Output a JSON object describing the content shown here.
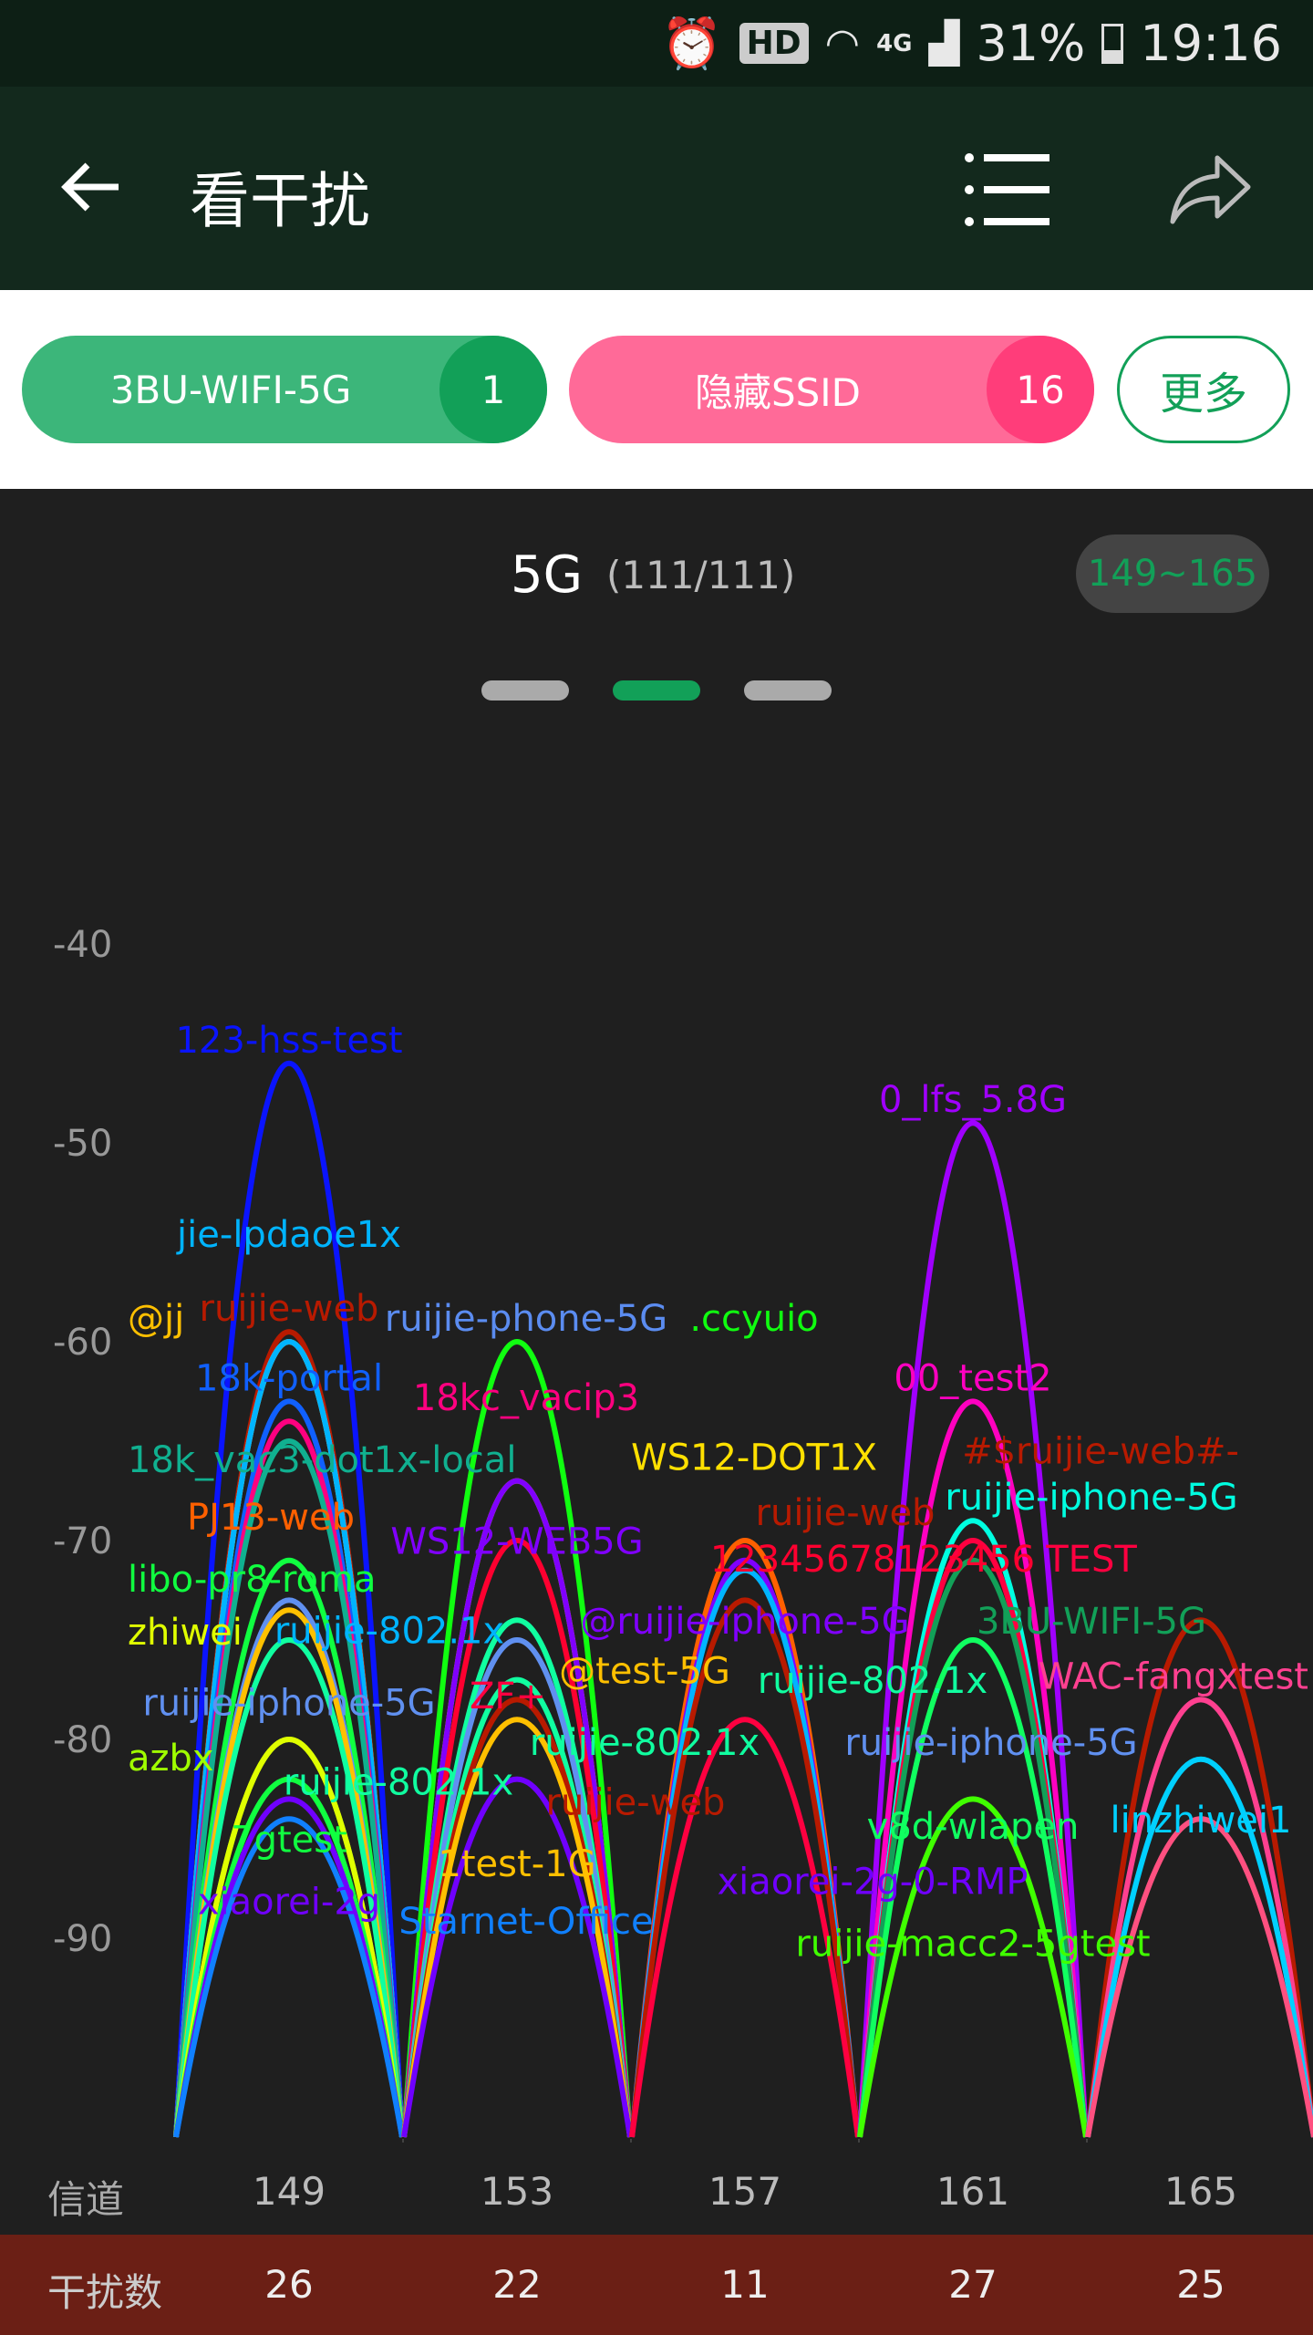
{
  "status_bar": {
    "hd": "HD",
    "network": "4G",
    "battery": "31%",
    "time": "19:16",
    "icons": [
      "alarm-icon",
      "wifi-icon",
      "signal-icon",
      "battery-icon"
    ]
  },
  "toolbar": {
    "title": "看干扰",
    "icons": [
      "back-arrow-icon",
      "list-menu-icon",
      "share-icon"
    ]
  },
  "filters": {
    "chip1": {
      "label": "3BU-WIFI-5G",
      "count": "1",
      "color": "#3cb67a"
    },
    "chip2": {
      "label": "隐藏SSID",
      "count": "16",
      "color": "#ff6a98"
    },
    "more": "更多"
  },
  "band": {
    "title": "5G",
    "count": "(111/111)",
    "range": "149~165",
    "page_dots": 3,
    "active_dot": 2
  },
  "chart_data": {
    "type": "area",
    "ylim": [
      -100,
      -40
    ],
    "yticks": [
      -40,
      -50,
      -60,
      -70,
      -80,
      -90
    ],
    "xlabel": "信道",
    "channels": [
      149,
      153,
      157,
      161,
      165
    ],
    "interference_label": "干扰数",
    "interference": [
      26,
      22,
      11,
      27,
      25
    ],
    "grid": false,
    "networks": [
      {
        "name": "123-hss-test",
        "channel": 149,
        "rssi": -46,
        "color": "#0a14ff"
      },
      {
        "name": "ruijie-web",
        "channel": 149,
        "rssi": -59.5,
        "color": "#b81a00"
      },
      {
        "name": "ruijie-phone-5G",
        "channel": 149,
        "rssi": -60,
        "color": "#5b8cf0"
      },
      {
        "name": "@jj",
        "channel": 149,
        "rssi": -60,
        "color": "#ffc000"
      },
      {
        "name": "jie-lpdaoe1x",
        "channel": 149,
        "rssi": -60,
        "color": "#00b4ff"
      },
      {
        "name": "18k-portal",
        "channel": 149,
        "rssi": -63,
        "color": "#1060ff"
      },
      {
        "name": "18kc_vacip3",
        "channel": 149,
        "rssi": -64,
        "color": "#ff0080"
      },
      {
        "name": "18k_vac3-dot1x-local",
        "channel": 149,
        "rssi": -65,
        "color": "#10b090"
      },
      {
        "name": "libo-pr8-roma",
        "channel": 149,
        "rssi": -71,
        "color": "#10ff40"
      },
      {
        "name": "ruijie-iphone-5G",
        "channel": 149,
        "rssi": -73,
        "color": "#6090f0"
      },
      {
        "name": "@test-5G",
        "channel": 149,
        "rssi": -73.5,
        "color": "#ffc000"
      },
      {
        "name": "ruijie-802.1x",
        "channel": 149,
        "rssi": -75,
        "color": "#10ffa0"
      },
      {
        "name": "azbx",
        "channel": 149,
        "rssi": -80,
        "color": "#a0ff00"
      },
      {
        "name": "zhiwei",
        "channel": 149,
        "rssi": -80,
        "color": "#e0ff00"
      },
      {
        "name": "7gtest",
        "channel": 149,
        "rssi": -82,
        "color": "#10ff40"
      },
      {
        "name": "xiaorei-2g",
        "channel": 149,
        "rssi": -83,
        "color": "#7000ff"
      },
      {
        "name": "Starnet-Office",
        "channel": 149,
        "rssi": -84,
        "color": "#1080ff"
      },
      {
        "name": ".ccyuio",
        "channel": 153,
        "rssi": -60,
        "color": "#10ff10"
      },
      {
        "name": "WS12-DOT1X",
        "channel": 153,
        "rssi": -67,
        "color": "#ffe000"
      },
      {
        "name": "WS12-WEB5G",
        "channel": 153,
        "rssi": -67,
        "color": "#8000ff"
      },
      {
        "name": "12345678123456",
        "channel": 153,
        "rssi": -70,
        "color": "#ff0030"
      },
      {
        "name": "ruijie-802.1x",
        "channel": 153,
        "rssi": -74,
        "color": "#10ffa0"
      },
      {
        "name": "ruijie-iphone-5G",
        "channel": 153,
        "rssi": -75,
        "color": "#6090f0"
      },
      {
        "name": "ruijie-802.1x",
        "channel": 153,
        "rssi": -77,
        "color": "#10ffa0"
      },
      {
        "name": "ruijie-web",
        "channel": 153,
        "rssi": -78,
        "color": "#b81a00"
      },
      {
        "name": "1test-1G",
        "channel": 153,
        "rssi": -79,
        "color": "#ffc000"
      },
      {
        "name": "xiaorei-2g-0-RMP",
        "channel": 153,
        "rssi": -82,
        "color": "#7000ff"
      },
      {
        "name": "PJ13-web",
        "channel": 157,
        "rssi": -70,
        "color": "#ff6000"
      },
      {
        "name": "@ruijie-iphone-5G",
        "channel": 157,
        "rssi": -71,
        "color": "#8000ff"
      },
      {
        "name": "ruijie-802.1x",
        "channel": 157,
        "rssi": -71.5,
        "color": "#00b4ff"
      },
      {
        "name": "#$ruijie-web#-",
        "channel": 157,
        "rssi": -73,
        "color": "#b81a00"
      },
      {
        "name": "ZF+",
        "channel": 157,
        "rssi": -79,
        "color": "#ff0040"
      },
      {
        "name": "0_lfs_5.8G",
        "channel": 161,
        "rssi": -49,
        "color": "#a000ff"
      },
      {
        "name": "00_test2",
        "channel": 161,
        "rssi": -63,
        "color": "#ff00c0"
      },
      {
        "name": "ruijie-iphone-5G",
        "channel": 161,
        "rssi": -69,
        "color": "#00ffe0"
      },
      {
        "name": "TEST",
        "channel": 161,
        "rssi": -70,
        "color": "#ff0040"
      },
      {
        "name": "3BU-WIFI-5G",
        "channel": 161,
        "rssi": -71,
        "color": "#12a058"
      },
      {
        "name": "v8d-wlapen",
        "channel": 161,
        "rssi": -75,
        "color": "#10ff60"
      },
      {
        "name": "ruijie-macc2-5gtest",
        "channel": 161,
        "rssi": -83,
        "color": "#40ff00"
      },
      {
        "name": "ruijie-web",
        "channel": 165,
        "rssi": -74,
        "color": "#b81a00"
      },
      {
        "name": "WAC-fangxtest",
        "channel": 165,
        "rssi": -78,
        "color": "#ff4090"
      },
      {
        "name": "linzhiwei1",
        "channel": 165,
        "rssi": -81,
        "color": "#00d0ff"
      },
      {
        "name": "",
        "channel": 165,
        "rssi": -84,
        "color": "#ff5080"
      }
    ]
  }
}
